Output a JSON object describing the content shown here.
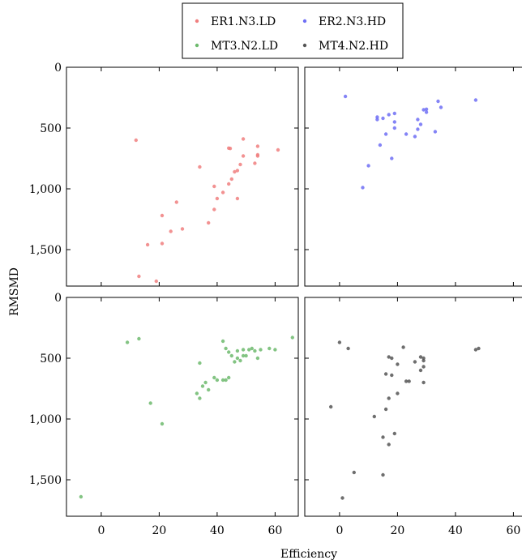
{
  "chart_data": {
    "type": "scatter",
    "layout": "2x2 facets with shared axes",
    "xlabel": "Efficiency",
    "ylabel": "RMSMD",
    "xlim": [
      -12,
      68
    ],
    "ylim": [
      1800,
      0
    ],
    "y_axis_inverted": true,
    "xticks": [
      0,
      20,
      40,
      60
    ],
    "xtick_labels": [
      "0",
      "20",
      "40",
      "60"
    ],
    "yticks": [
      0,
      500,
      1000,
      1500
    ],
    "ytick_labels": [
      "0",
      "500",
      "1,000",
      "1,500"
    ],
    "grid": false,
    "legend_placement": "top-center",
    "legend": [
      "ER1.N3.LD",
      "ER2.N3.HD",
      "MT3.N2.LD",
      "MT4.N2.HD"
    ],
    "series": [
      {
        "name": "ER1.N3.LD",
        "color": "#f07f7f",
        "panel": "top-left",
        "points": [
          [
            12,
            600
          ],
          [
            44,
            665
          ],
          [
            44.5,
            668
          ],
          [
            49,
            590
          ],
          [
            54,
            720
          ],
          [
            54,
            730
          ],
          [
            54,
            650
          ],
          [
            61,
            680
          ],
          [
            53,
            790
          ],
          [
            49,
            730
          ],
          [
            48,
            800
          ],
          [
            47,
            850
          ],
          [
            46,
            860
          ],
          [
            45,
            920
          ],
          [
            44,
            960
          ],
          [
            42,
            1030
          ],
          [
            47,
            1080
          ],
          [
            39,
            980
          ],
          [
            40,
            1080
          ],
          [
            39,
            1170
          ],
          [
            34,
            820
          ],
          [
            37,
            1280
          ],
          [
            26,
            1110
          ],
          [
            21,
            1220
          ],
          [
            24,
            1350
          ],
          [
            28,
            1330
          ],
          [
            21,
            1450
          ],
          [
            16,
            1460
          ],
          [
            13,
            1720
          ],
          [
            19,
            1760
          ]
        ]
      },
      {
        "name": "ER2.N3.HD",
        "color": "#6f6ff5",
        "panel": "top-right",
        "points": [
          [
            2,
            240
          ],
          [
            47,
            270
          ],
          [
            34,
            280
          ],
          [
            35,
            330
          ],
          [
            29,
            350
          ],
          [
            30,
            345
          ],
          [
            30,
            370
          ],
          [
            19,
            380
          ],
          [
            17,
            390
          ],
          [
            13,
            410
          ],
          [
            13,
            430
          ],
          [
            15,
            420
          ],
          [
            27,
            430
          ],
          [
            19,
            450
          ],
          [
            28,
            470
          ],
          [
            19,
            500
          ],
          [
            27,
            510
          ],
          [
            33,
            530
          ],
          [
            23,
            550
          ],
          [
            16,
            550
          ],
          [
            26,
            570
          ],
          [
            14,
            640
          ],
          [
            18,
            750
          ],
          [
            10,
            810
          ],
          [
            8,
            990
          ]
        ]
      },
      {
        "name": "MT3.N2.LD",
        "color": "#6dba6d",
        "panel": "bottom-left",
        "points": [
          [
            66,
            330
          ],
          [
            13,
            340
          ],
          [
            9,
            370
          ],
          [
            42,
            360
          ],
          [
            43,
            420
          ],
          [
            44,
            450
          ],
          [
            47,
            440
          ],
          [
            49,
            430
          ],
          [
            51,
            430
          ],
          [
            52,
            420
          ],
          [
            53,
            440
          ],
          [
            55,
            430
          ],
          [
            58,
            420
          ],
          [
            60,
            430
          ],
          [
            54,
            500
          ],
          [
            49,
            480
          ],
          [
            50,
            480
          ],
          [
            45,
            480
          ],
          [
            47,
            500
          ],
          [
            46,
            530
          ],
          [
            48,
            520
          ],
          [
            44,
            660
          ],
          [
            34,
            540
          ],
          [
            39,
            660
          ],
          [
            40,
            680
          ],
          [
            42,
            680
          ],
          [
            43,
            680
          ],
          [
            36,
            700
          ],
          [
            35,
            730
          ],
          [
            37,
            760
          ],
          [
            33,
            790
          ],
          [
            34,
            830
          ],
          [
            17,
            870
          ],
          [
            21,
            1040
          ],
          [
            -7,
            1640
          ]
        ]
      },
      {
        "name": "MT4.N2.HD",
        "color": "#555555",
        "panel": "bottom-right",
        "points": [
          [
            0,
            370
          ],
          [
            3,
            420
          ],
          [
            22,
            410
          ],
          [
            48,
            420
          ],
          [
            47,
            430
          ],
          [
            17,
            490
          ],
          [
            18,
            500
          ],
          [
            28,
            490
          ],
          [
            29,
            500
          ],
          [
            29,
            520
          ],
          [
            26,
            530
          ],
          [
            20,
            550
          ],
          [
            29,
            570
          ],
          [
            28,
            600
          ],
          [
            16,
            630
          ],
          [
            18,
            640
          ],
          [
            24,
            690
          ],
          [
            23,
            690
          ],
          [
            29,
            700
          ],
          [
            20,
            790
          ],
          [
            17,
            830
          ],
          [
            -3,
            900
          ],
          [
            16,
            920
          ],
          [
            12,
            980
          ],
          [
            19,
            1120
          ],
          [
            15,
            1150
          ],
          [
            17,
            1210
          ],
          [
            5,
            1440
          ],
          [
            15,
            1460
          ],
          [
            1,
            1650
          ]
        ]
      }
    ]
  }
}
